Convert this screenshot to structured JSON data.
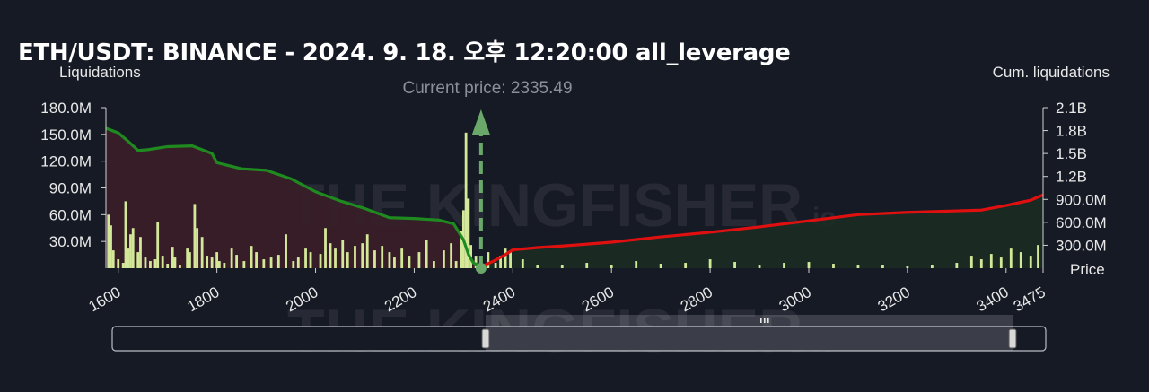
{
  "title": "ETH/USDT: BINANCE - 2024. 9. 18. 오후 12:20:00 all_leverage",
  "watermark": {
    "brand": "THE KINGFISHER",
    "suffix": "io"
  },
  "colors": {
    "background": "#161a25",
    "short_area": "#3a1e28",
    "long_area": "#1b2c24",
    "cum_short_line": "#1f8a1f",
    "cum_long_line": "#e01010",
    "bar": "#d4e89a",
    "bar_small": "#8c95c8",
    "current_price": "#6aa86a"
  },
  "chart_data": {
    "type": "bar",
    "title": "ETH/USDT: BINANCE - 2024. 9. 18. 오후 12:20:00 all_leverage",
    "xlabel": "Price",
    "ylabel": "Liquidations",
    "y2label": "Cum. liquidations",
    "current_price_label": "Current price: 2335.49",
    "current_price": 2335.49,
    "xlim": [
      1575,
      3475
    ],
    "ylim": [
      0,
      180000000
    ],
    "y2lim": [
      0,
      2100000000
    ],
    "x_ticks": [
      "1600",
      "1800",
      "2000",
      "2200",
      "2400",
      "2600",
      "2800",
      "3000",
      "3200",
      "3400",
      "3475"
    ],
    "x_tick_values": [
      1600,
      1800,
      2000,
      2200,
      2400,
      2600,
      2800,
      3000,
      3200,
      3400,
      3475
    ],
    "y_ticks": [
      "30.0M",
      "60.0M",
      "90.0M",
      "120.0M",
      "150.0M",
      "180.0M"
    ],
    "y_tick_values": [
      30000000,
      60000000,
      90000000,
      120000000,
      150000000,
      180000000
    ],
    "y2_ticks": [
      "300.0M",
      "600.0M",
      "900.0M",
      "1.2B",
      "1.5B",
      "1.8B",
      "2.1B"
    ],
    "y2_tick_values": [
      300000000,
      600000000,
      900000000,
      1200000000,
      1500000000,
      1800000000,
      2100000000
    ],
    "cum_short_liquidations": {
      "x": [
        1575,
        1600,
        1620,
        1640,
        1660,
        1700,
        1750,
        1790,
        1800,
        1850,
        1900,
        1950,
        2000,
        2050,
        2100,
        2150,
        2200,
        2250,
        2280,
        2300,
        2310,
        2320,
        2335.49
      ],
      "y": [
        1830000000,
        1770000000,
        1660000000,
        1540000000,
        1550000000,
        1590000000,
        1600000000,
        1500000000,
        1380000000,
        1300000000,
        1280000000,
        1170000000,
        1000000000,
        880000000,
        780000000,
        660000000,
        650000000,
        630000000,
        580000000,
        370000000,
        180000000,
        70000000,
        20000000
      ]
    },
    "cum_long_liquidations": {
      "x": [
        2335.49,
        2360,
        2380,
        2400,
        2450,
        2500,
        2600,
        2700,
        2800,
        2900,
        3000,
        3100,
        3200,
        3300,
        3350,
        3400,
        3450,
        3475
      ],
      "y": [
        20000000,
        90000000,
        160000000,
        240000000,
        270000000,
        290000000,
        340000000,
        410000000,
        470000000,
        540000000,
        620000000,
        700000000,
        730000000,
        750000000,
        760000000,
        820000000,
        890000000,
        960000000
      ]
    },
    "liquidation_bars": {
      "x": [
        1580,
        1585,
        1590,
        1600,
        1610,
        1615,
        1620,
        1625,
        1630,
        1640,
        1645,
        1655,
        1665,
        1675,
        1680,
        1690,
        1700,
        1710,
        1715,
        1725,
        1740,
        1745,
        1755,
        1760,
        1770,
        1780,
        1790,
        1800,
        1805,
        1815,
        1830,
        1840,
        1855,
        1870,
        1880,
        1895,
        1910,
        1925,
        1940,
        1955,
        1965,
        1980,
        1990,
        2010,
        2020,
        2030,
        2040,
        2055,
        2065,
        2080,
        2095,
        2105,
        2120,
        2135,
        2150,
        2160,
        2175,
        2190,
        2210,
        2225,
        2240,
        2260,
        2275,
        2285,
        2295,
        2300,
        2305,
        2310,
        2315,
        2325,
        2350,
        2365,
        2375,
        2385,
        2395,
        2420,
        2450,
        2500,
        2550,
        2600,
        2650,
        2700,
        2750,
        2800,
        2850,
        2900,
        2950,
        3000,
        3050,
        3100,
        3150,
        3200,
        3250,
        3300,
        3330,
        3350,
        3370,
        3390,
        3410,
        3430,
        3450,
        3465
      ],
      "y": [
        60000000,
        48000000,
        20000000,
        10000000,
        6000000,
        75000000,
        22000000,
        38000000,
        45000000,
        18000000,
        35000000,
        12000000,
        8000000,
        10000000,
        52000000,
        14000000,
        5000000,
        24000000,
        12000000,
        4000000,
        22000000,
        18000000,
        72000000,
        45000000,
        35000000,
        14000000,
        12000000,
        18000000,
        8000000,
        6000000,
        22000000,
        15000000,
        8000000,
        25000000,
        18000000,
        10000000,
        12000000,
        15000000,
        38000000,
        8000000,
        12000000,
        22000000,
        18000000,
        16000000,
        45000000,
        28000000,
        22000000,
        32000000,
        18000000,
        25000000,
        28000000,
        38000000,
        20000000,
        25000000,
        18000000,
        12000000,
        22000000,
        14000000,
        18000000,
        32000000,
        8000000,
        20000000,
        28000000,
        8000000,
        42000000,
        65000000,
        152000000,
        78000000,
        26000000,
        14000000,
        18000000,
        6000000,
        14000000,
        22000000,
        18000000,
        10000000,
        4000000,
        4000000,
        6000000,
        4000000,
        8000000,
        5000000,
        6000000,
        10000000,
        7000000,
        4000000,
        6000000,
        7000000,
        5000000,
        4000000,
        4000000,
        3000000,
        4000000,
        6000000,
        14000000,
        10000000,
        16000000,
        12000000,
        22000000,
        18000000,
        14000000,
        26000000
      ]
    },
    "grid": false,
    "range_slider": {
      "start": 2335,
      "end": 3475
    }
  }
}
